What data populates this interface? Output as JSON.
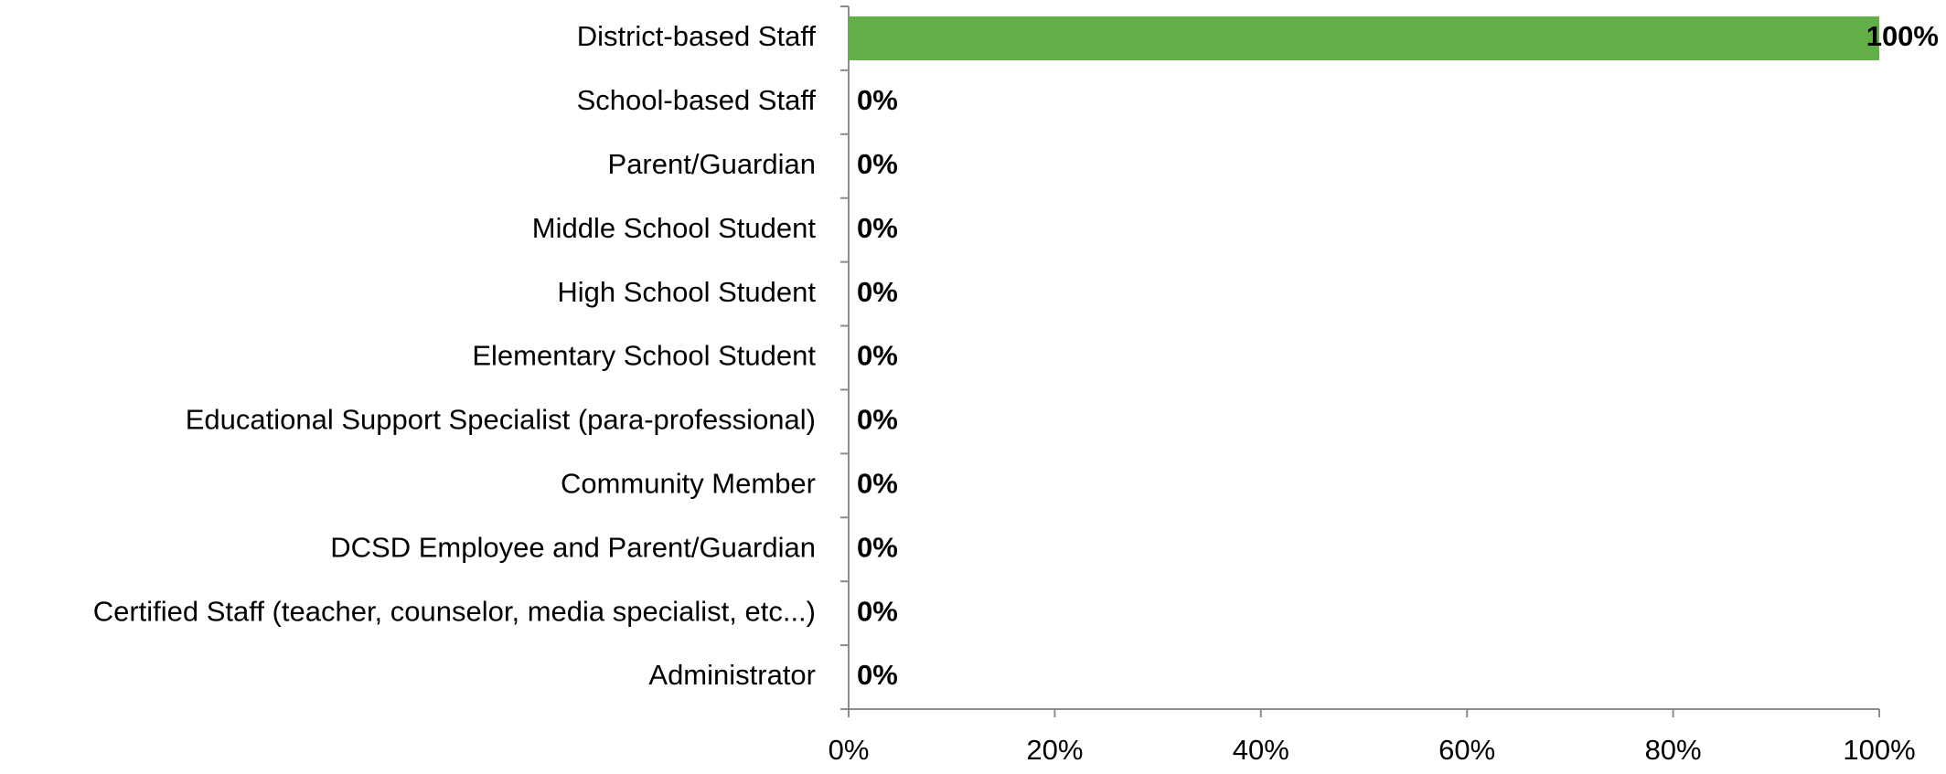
{
  "chart_data": {
    "type": "hbar",
    "categories": [
      "District-based Staff",
      "School-based Staff",
      "Parent/Guardian",
      "Middle School Student",
      "High School Student",
      "Elementary School Student",
      "Educational Support Specialist (para-professional)",
      "Community Member",
      "DCSD Employee and Parent/Guardian",
      "Certified Staff (teacher, counselor, media specialist, etc...)",
      "Administrator"
    ],
    "values": [
      100,
      0,
      0,
      0,
      0,
      0,
      0,
      0,
      0,
      0,
      0
    ],
    "value_labels": [
      "100%",
      "0%",
      "0%",
      "0%",
      "0%",
      "0%",
      "0%",
      "0%",
      "0%",
      "0%",
      "0%"
    ],
    "color": "#62ae47",
    "xlim": [
      0,
      100
    ],
    "xticks": [
      {
        "value": 0,
        "label": "0%"
      },
      {
        "value": 20,
        "label": "20%"
      },
      {
        "value": 40,
        "label": "40%"
      },
      {
        "value": 60,
        "label": "60%"
      },
      {
        "value": 80,
        "label": "80%"
      },
      {
        "value": 100,
        "label": "100%"
      }
    ]
  }
}
